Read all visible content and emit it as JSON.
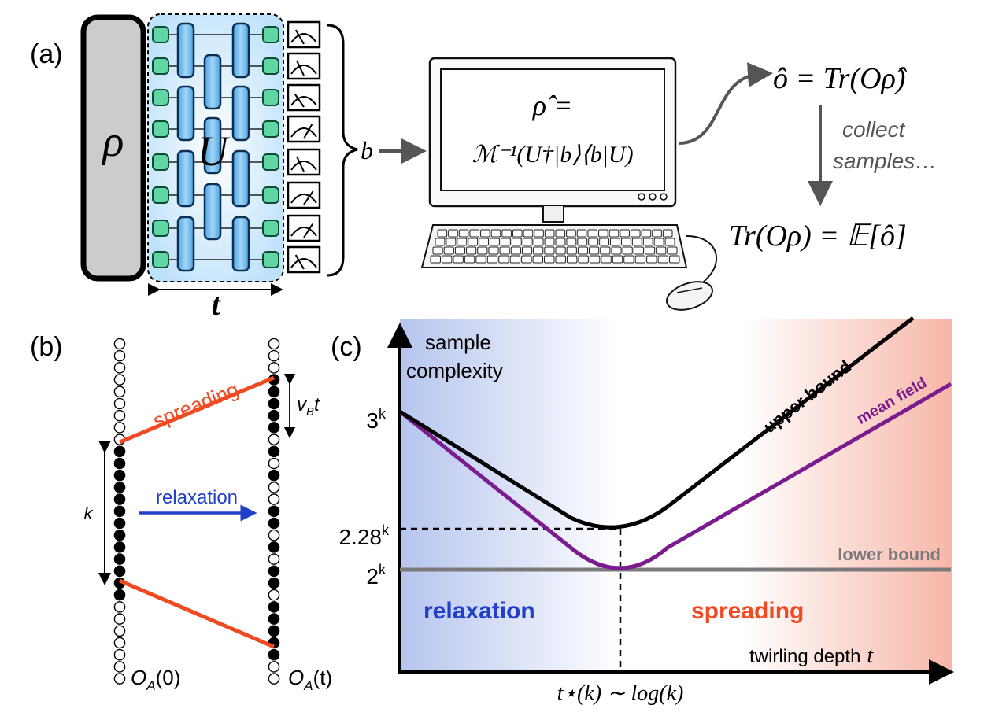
{
  "panel_a": {
    "label": "(a)",
    "rho": "ρ",
    "unitary": "U",
    "time_label": "t",
    "outcome": "b",
    "screen_line1": "ρ̂ =",
    "screen_line2": "ℳ⁻¹(U†|b⟩⟨b|U)",
    "estimator": "ô = Tr(Oρ̂)",
    "collect_line1": "collect",
    "collect_line2": "samples…",
    "expectation": "Tr(Oρ) = 𝔼[ô]"
  },
  "panel_b": {
    "label": "(b)",
    "spreading": "spreading",
    "relaxation": "relaxation",
    "k": "k",
    "vbt": "v",
    "vbt_sub": "B",
    "vbt_t": "t",
    "left_caption": "O",
    "left_sub": "A",
    "left_arg": "(0)",
    "right_caption": "O",
    "right_sub": "A",
    "right_arg": "(t)",
    "left_sites": [
      0,
      0,
      0,
      0,
      0,
      0,
      0,
      0,
      0,
      1,
      1,
      1,
      1,
      1,
      1,
      1,
      1,
      1,
      1,
      1,
      1,
      1,
      0,
      0,
      0,
      0,
      0,
      0,
      0
    ],
    "right_sites": [
      0,
      0,
      0,
      1,
      1,
      1,
      1,
      1,
      0,
      1,
      0,
      1,
      0,
      0,
      1,
      1,
      0,
      1,
      0,
      1,
      1,
      0,
      1,
      1,
      1,
      1,
      1,
      0,
      0
    ]
  },
  "panel_c": {
    "label": "(c)",
    "ylabel_1": "sample",
    "ylabel_2": "complexity",
    "xlabel": "twirling depth",
    "xlabel_var": "t",
    "tick_3k": "3",
    "tick_228k": "2.28",
    "tick_2k": "2",
    "tick_sup": "k",
    "tstar": "t⋆(k) ∼ log(k)",
    "region_left": "relaxation",
    "region_right": "spreading",
    "colors": {
      "upper": "#000000",
      "mean": "#7b1c8e",
      "lower": "#7a7a7a",
      "relax": "#2040c8",
      "spread": "#f04a22"
    },
    "chart_data": {
      "type": "line",
      "xlabel": "twirling depth t",
      "ylabel": "sample complexity",
      "y_ticks": [
        "3^k",
        "2.28^k",
        "2^k"
      ],
      "x_ticks": [
        "t*(k) ~ log(k)"
      ],
      "series": [
        {
          "name": "upper bound",
          "shape": "decreases from 3^k to a minimum of 2.28^k at t*(k), then increases steeply"
        },
        {
          "name": "mean field",
          "shape": "decreases from 3^k to a minimum of 2^k at t*(k), then increases"
        },
        {
          "name": "lower bound",
          "shape": "constant at 2^k"
        }
      ],
      "regions": [
        "relaxation",
        "spreading"
      ]
    }
  }
}
